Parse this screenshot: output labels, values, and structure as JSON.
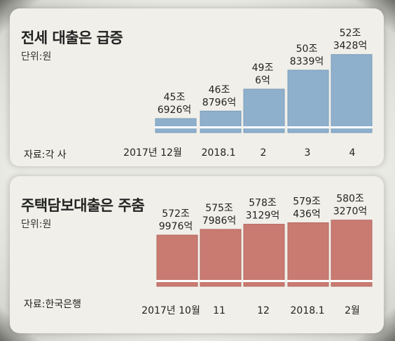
{
  "chart_data": [
    {
      "type": "bar",
      "title": "전세 대출은 급증",
      "unit_label": "단위:원",
      "source": "자료:각 사",
      "categories": [
        "2017년 12월",
        "2018.1",
        "2",
        "3",
        "4"
      ],
      "value_labels": [
        [
          "45조",
          "6926억"
        ],
        [
          "46조",
          "8796억"
        ],
        [
          "49조",
          "6억"
        ],
        [
          "50조",
          "8339억"
        ],
        [
          "52조",
          "3428억"
        ]
      ],
      "values": [
        45.6926,
        46.8796,
        49.0006,
        50.8339,
        52.3428
      ],
      "ylim": [
        44.8,
        52.8
      ],
      "grid": false,
      "colors": {
        "bar": "#8fb0cc",
        "bar_edge": "#7a9cba"
      }
    },
    {
      "type": "bar",
      "title": "주택담보대출은 주춤",
      "unit_label": "단위:원",
      "source": "자료:한국은행",
      "categories": [
        "2017년 10월",
        "11",
        "12",
        "2018.1",
        "2월"
      ],
      "value_labels": [
        [
          "572조",
          "9976억"
        ],
        [
          "575조",
          "7986억"
        ],
        [
          "578조",
          "3129억"
        ],
        [
          "579조",
          "436억"
        ],
        [
          "580조",
          "3270억"
        ]
      ],
      "values": [
        572.9976,
        575.7986,
        578.3129,
        579.0436,
        580.327
      ],
      "ylim": [
        548,
        584
      ],
      "grid": false,
      "colors": {
        "bar": "#c97b72",
        "bar_edge": "#b5675f"
      }
    }
  ]
}
